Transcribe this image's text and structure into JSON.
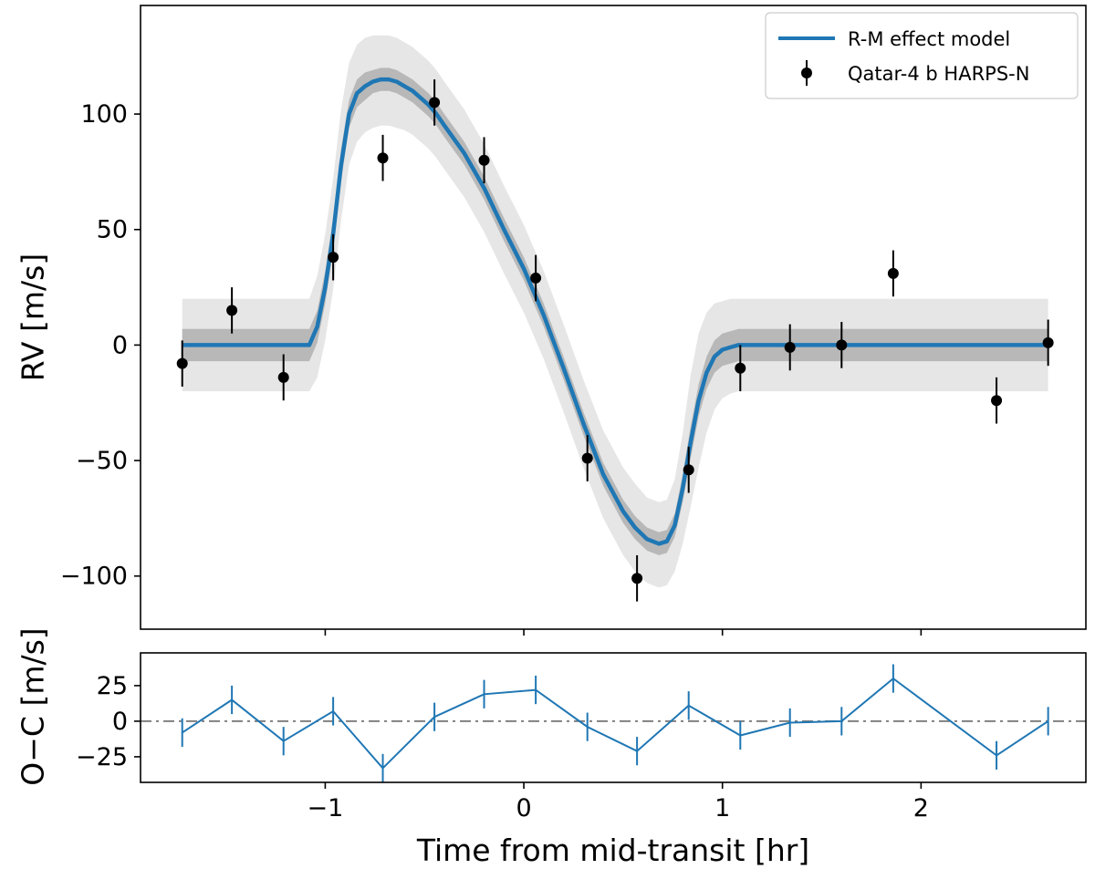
{
  "chart_data": [
    {
      "type": "line",
      "panel": "rv",
      "title": "",
      "xlabel": "",
      "ylabel": "RV [m/s]",
      "xlim": [
        -1.93,
        2.83
      ],
      "ylim": [
        -123,
        147
      ],
      "yticks": [
        -100,
        -50,
        0,
        50,
        100
      ],
      "ytick_labels": [
        "−100",
        "−50",
        "0",
        "50",
        "100"
      ],
      "grid": false,
      "legend_position": "top-right",
      "legend": [
        {
          "label": "R-M effect model",
          "kind": "line"
        },
        {
          "label": "Qatar-4 b HARPS-N",
          "kind": "errorbar"
        }
      ],
      "model": {
        "name": "R-M effect model",
        "color": "#1f77b4",
        "x": [
          -1.72,
          -1.08,
          -1.04,
          -1.0,
          -0.96,
          -0.92,
          -0.88,
          -0.84,
          -0.8,
          -0.76,
          -0.72,
          -0.68,
          -0.64,
          -0.6,
          -0.56,
          -0.52,
          -0.48,
          -0.44,
          -0.4,
          -0.3,
          -0.2,
          -0.1,
          0.0,
          0.1,
          0.2,
          0.3,
          0.4,
          0.5,
          0.56,
          0.62,
          0.68,
          0.72,
          0.76,
          0.8,
          0.84,
          0.88,
          0.92,
          0.96,
          1.0,
          1.04,
          1.08,
          2.64
        ],
        "y": [
          0,
          0,
          8,
          25,
          48,
          78,
          100,
          109,
          112,
          114,
          115,
          115,
          114,
          112,
          110,
          107,
          104,
          100,
          95,
          83,
          68,
          50,
          33,
          13,
          -10,
          -34,
          -56,
          -72,
          -79,
          -84,
          -86,
          -85,
          -78,
          -62,
          -42,
          -24,
          -12,
          -5,
          -2,
          -1,
          0,
          0
        ]
      },
      "bands": [
        {
          "name": "outer",
          "color": "#e6e6e6",
          "upper": [
            20,
            20,
            30,
            48,
            72,
            102,
            122,
            130,
            133,
            134,
            134,
            134,
            133,
            131,
            129,
            126,
            123,
            119,
            114,
            102,
            87,
            69,
            52,
            32,
            9,
            -15,
            -37,
            -53,
            -60,
            -66,
            -68,
            -67,
            -58,
            -38,
            -13,
            5,
            14,
            18,
            19,
            20,
            20,
            20
          ],
          "lower": [
            -20,
            -20,
            -14,
            2,
            24,
            54,
            78,
            88,
            92,
            94,
            95,
            95,
            94,
            93,
            91,
            88,
            85,
            81,
            76,
            64,
            49,
            31,
            14,
            -6,
            -29,
            -53,
            -75,
            -91,
            -98,
            -103,
            -105,
            -104,
            -98,
            -86,
            -70,
            -53,
            -38,
            -28,
            -23,
            -21,
            -20,
            -20
          ]
        },
        {
          "name": "inner",
          "color": "#b8b8b8",
          "upper": [
            7,
            7,
            15,
            32,
            55,
            85,
            106,
            115,
            118,
            119,
            120,
            120,
            119,
            117,
            115,
            112,
            109,
            105,
            100,
            88,
            73,
            55,
            38,
            18,
            -5,
            -29,
            -51,
            -67,
            -74,
            -79,
            -81,
            -80,
            -73,
            -56,
            -35,
            -17,
            -5,
            2,
            5,
            6,
            7,
            7
          ],
          "lower": [
            -7,
            -7,
            1,
            18,
            41,
            71,
            94,
            103,
            106,
            109,
            110,
            110,
            109,
            107,
            105,
            102,
            99,
            95,
            90,
            78,
            63,
            45,
            28,
            8,
            -15,
            -39,
            -61,
            -77,
            -84,
            -89,
            -91,
            -90,
            -83,
            -68,
            -49,
            -31,
            -19,
            -12,
            -9,
            -8,
            -7,
            -7
          ]
        }
      ],
      "series": [
        {
          "name": "Qatar-4 b HARPS-N",
          "color": "#000000",
          "x": [
            -1.72,
            -1.47,
            -1.21,
            -0.96,
            -0.71,
            -0.45,
            -0.2,
            0.06,
            0.32,
            0.57,
            0.83,
            1.09,
            1.34,
            1.6,
            1.86,
            2.38,
            2.64
          ],
          "y": [
            -8,
            15,
            -14,
            38,
            81,
            105,
            80,
            29,
            -49,
            -101,
            -54,
            -10,
            -1,
            0,
            31,
            -24,
            1
          ],
          "yerr": [
            10,
            10,
            10,
            10,
            10,
            10,
            10,
            10,
            10,
            10,
            10,
            10,
            10,
            10,
            10,
            10,
            10
          ]
        }
      ]
    },
    {
      "type": "line",
      "panel": "residuals",
      "title": "",
      "xlabel": "Time from mid-transit [hr]",
      "ylabel": "O−C [m/s]",
      "xlim": [
        -1.93,
        2.83
      ],
      "ylim": [
        -43,
        48
      ],
      "xticks": [
        -1,
        0,
        1,
        2
      ],
      "xtick_labels": [
        "−1",
        "0",
        "1",
        "2"
      ],
      "yticks": [
        -25,
        0,
        25
      ],
      "ytick_labels": [
        "−25",
        "0",
        "25"
      ],
      "grid": false,
      "reference_line": {
        "y": 0,
        "style": "dashdot",
        "color": "#808080"
      },
      "series": [
        {
          "name": "O-C",
          "color": "#1f77b4",
          "x": [
            -1.72,
            -1.47,
            -1.21,
            -0.96,
            -0.71,
            -0.45,
            -0.2,
            0.06,
            0.32,
            0.57,
            0.83,
            1.09,
            1.34,
            1.6,
            1.86,
            2.38,
            2.64
          ],
          "y": [
            -8,
            15,
            -14,
            7,
            -33,
            3,
            19,
            22,
            -4,
            -21,
            11,
            -10,
            -1,
            0,
            30,
            -24,
            0
          ],
          "yerr": [
            10,
            10,
            10,
            10,
            10,
            10,
            10,
            10,
            10,
            10,
            10,
            10,
            10,
            10,
            10,
            10,
            10
          ]
        }
      ]
    }
  ]
}
